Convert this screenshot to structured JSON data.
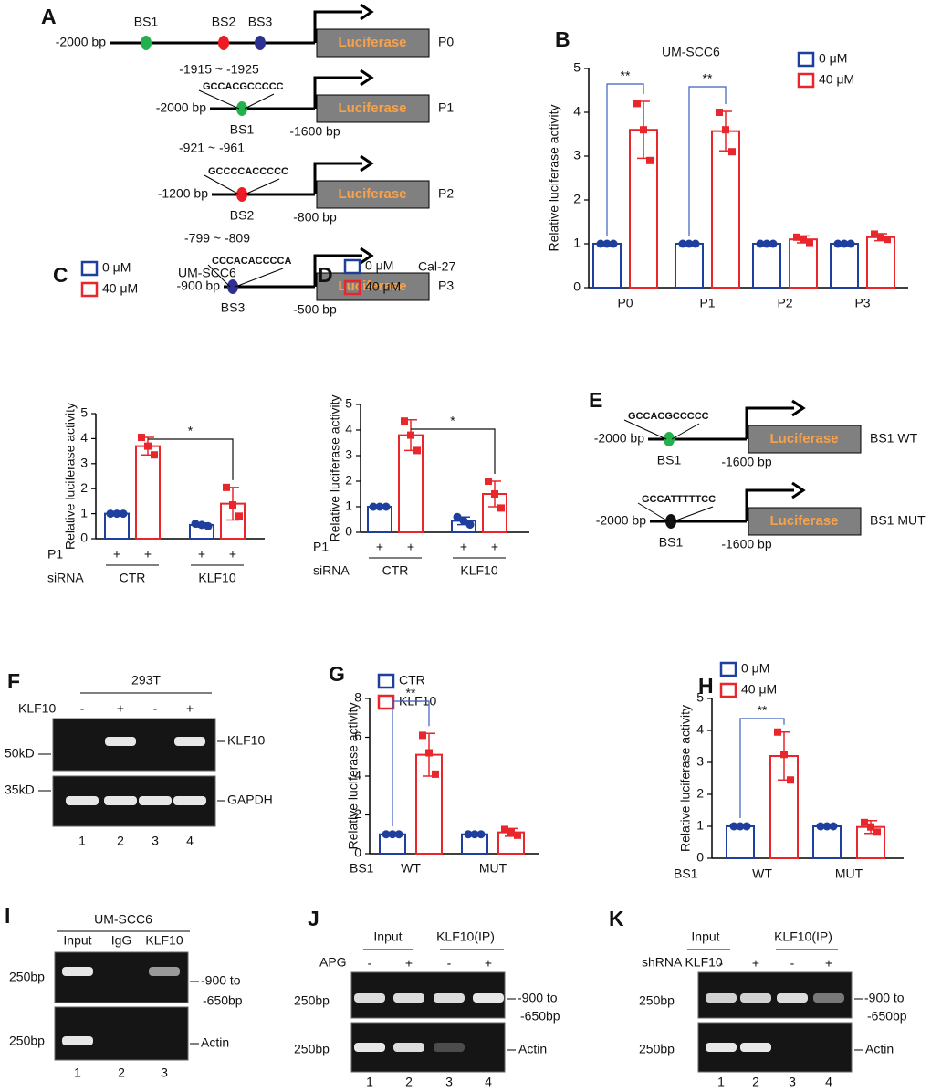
{
  "panel_a": {
    "label": "A",
    "constructs": [
      {
        "name": "P0",
        "start": "-2000 bp",
        "sites": [
          "BS1",
          "BS2",
          "BS3"
        ],
        "range": "-1915 ~ -1925",
        "reporter": "Luciferase"
      },
      {
        "name": "P1",
        "start": "-2000 bp",
        "end": "-1600 bp",
        "sequence": "GCCACGCCCCC",
        "site": "BS1",
        "reporter": "Luciferase"
      },
      {
        "name": "P2",
        "start": "-1200 bp",
        "end": "-800 bp",
        "range": "-921 ~ -961",
        "sequence": "GCCCCACCCCC",
        "site": "BS2",
        "reporter": "Luciferase"
      },
      {
        "name": "P3",
        "start": "-900 bp",
        "end": "-500 bp",
        "range": "-799 ~ -809",
        "sequence": "CCCACACCCCA",
        "site": "BS3",
        "reporter": "Luciferase"
      }
    ]
  },
  "panel_e": {
    "label": "E",
    "constructs": [
      {
        "name": "BS1 WT",
        "start": "-2000 bp",
        "end": "-1600 bp",
        "sequence": "GCCACGCCCCC",
        "site": "BS1",
        "reporter": "Luciferase"
      },
      {
        "name": "BS1 MUT",
        "start": "-2000 bp",
        "end": "-1600 bp",
        "sequence": "GCCATTTTTCC",
        "site": "BS1",
        "reporter": "Luciferase"
      }
    ]
  },
  "chart_data": [
    {
      "type": "bar",
      "panel": "B",
      "title": "UM-SCC6",
      "y_label": "Relative luciferase activity",
      "categories": [
        "P0",
        "P1",
        "P2",
        "P3"
      ],
      "series": [
        {
          "name": "0 μM",
          "color": "#1f3f9f",
          "values": [
            1,
            1,
            1,
            1
          ],
          "errors": [
            0.02,
            0.02,
            0.02,
            0.02
          ],
          "points": [
            [
              1,
              1,
              1
            ],
            [
              1,
              1,
              1
            ],
            [
              1,
              1,
              1
            ],
            [
              1,
              1,
              1
            ]
          ]
        },
        {
          "name": "40 μM",
          "color": "#e8262b",
          "values": [
            3.6,
            3.57,
            1.1,
            1.15
          ],
          "errors": [
            0.65,
            0.45,
            0.08,
            0.08
          ],
          "points": [
            [
              4.2,
              3.6,
              2.9
            ],
            [
              4.0,
              3.6,
              3.1
            ],
            [
              1.15,
              1.1,
              1.03
            ],
            [
              1.22,
              1.15,
              1.1
            ]
          ]
        }
      ],
      "ylim": [
        0,
        5
      ],
      "yticks": [
        0,
        1,
        2,
        3,
        4,
        5
      ],
      "annotations": [
        "**",
        "**"
      ]
    },
    {
      "type": "bar",
      "panel": "C",
      "title": "UM-SCC6",
      "y_label": "Relative luciferase activity",
      "categories": [
        "CTR",
        "KLF10"
      ],
      "category_row_label": "siRNA",
      "construct_row": {
        "label": "P1",
        "values": [
          "+",
          "+",
          "+",
          "+"
        ]
      },
      "series": [
        {
          "name": "0 μM",
          "color": "#1f3f9f",
          "values": [
            1,
            0.55
          ],
          "errors": [
            0.03,
            0.08
          ],
          "points": [
            [
              1,
              1,
              1
            ],
            [
              0.6,
              0.55,
              0.5
            ]
          ]
        },
        {
          "name": "40 μM",
          "color": "#e8262b",
          "values": [
            3.7,
            1.4
          ],
          "errors": [
            0.35,
            0.65
          ],
          "points": [
            [
              4.05,
              3.7,
              3.35
            ],
            [
              2.05,
              1.35,
              0.9
            ]
          ]
        }
      ],
      "ylim": [
        0,
        5
      ],
      "yticks": [
        0,
        1,
        2,
        3,
        4,
        5
      ],
      "annotations": [
        "*"
      ]
    },
    {
      "type": "bar",
      "panel": "D",
      "title": "Cal-27",
      "y_label": "Relative luciferase activity",
      "categories": [
        "CTR",
        "KLF10"
      ],
      "category_row_label": "siRNA",
      "construct_row": {
        "label": "P1",
        "values": [
          "+",
          "+",
          "+",
          "+"
        ]
      },
      "series": [
        {
          "name": "0 μM",
          "color": "#1f3f9f",
          "values": [
            1,
            0.45
          ],
          "errors": [
            0.03,
            0.15
          ],
          "points": [
            [
              1,
              1,
              1
            ],
            [
              0.6,
              0.45,
              0.3
            ]
          ]
        },
        {
          "name": "40 μM",
          "color": "#e8262b",
          "values": [
            3.8,
            1.5
          ],
          "errors": [
            0.6,
            0.5
          ],
          "points": [
            [
              4.35,
              3.8,
              3.2
            ],
            [
              2.0,
              1.5,
              0.95
            ]
          ]
        }
      ],
      "ylim": [
        0,
        5
      ],
      "yticks": [
        0,
        1,
        2,
        3,
        4,
        5
      ],
      "annotations": [
        "*"
      ]
    },
    {
      "type": "bar",
      "panel": "G",
      "y_label": "Relative luciferase activity",
      "categories": [
        "WT",
        "MUT"
      ],
      "category_row_label": "BS1",
      "series": [
        {
          "name": "CTR",
          "color": "#1f3f9f",
          "values": [
            1,
            1
          ],
          "errors": [
            0.03,
            0.03
          ],
          "points": [
            [
              1,
              1,
              1
            ],
            [
              1,
              1,
              1
            ]
          ]
        },
        {
          "name": "KLF10",
          "color": "#e8262b",
          "values": [
            5.1,
            1.1
          ],
          "errors": [
            1.1,
            0.2
          ],
          "points": [
            [
              6.1,
              5.2,
              4.1
            ],
            [
              1.25,
              1.1,
              0.95
            ]
          ]
        }
      ],
      "ylim": [
        0,
        8
      ],
      "yticks": [
        0,
        2,
        4,
        6,
        8
      ],
      "annotations": [
        "**"
      ]
    },
    {
      "type": "bar",
      "panel": "H",
      "y_label": "Relative luciferase activity",
      "categories": [
        "WT",
        "MUT"
      ],
      "category_row_label": "BS1",
      "series": [
        {
          "name": "0 μM",
          "color": "#1f3f9f",
          "values": [
            1,
            1
          ],
          "errors": [
            0.03,
            0.03
          ],
          "points": [
            [
              1,
              1,
              1
            ],
            [
              1,
              1,
              1
            ]
          ]
        },
        {
          "name": "40 μM",
          "color": "#e8262b",
          "values": [
            3.2,
            0.98
          ],
          "errors": [
            0.75,
            0.2
          ],
          "points": [
            [
              3.95,
              3.25,
              2.45
            ],
            [
              1.12,
              0.98,
              0.82
            ]
          ]
        }
      ],
      "ylim": [
        0,
        5
      ],
      "yticks": [
        0,
        1,
        2,
        3,
        4,
        5
      ],
      "annotations": [
        "**"
      ]
    }
  ],
  "panel_f": {
    "label": "F",
    "cell_line": "293T",
    "row_label": "KLF10",
    "treatment": [
      "-",
      "+",
      "-",
      "+"
    ],
    "size_markers": [
      "50kD",
      "35kD"
    ],
    "bands": [
      "KLF10",
      "GAPDH"
    ],
    "lanes": [
      1,
      2,
      3,
      4
    ]
  },
  "panel_i": {
    "label": "I",
    "cell_line": "UM-SCC6",
    "lane_labels": [
      "Input",
      "IgG",
      "KLF10"
    ],
    "size_markers": [
      "250bp",
      "250bp"
    ],
    "product": [
      "-900 to",
      "-650bp"
    ],
    "control": "Actin",
    "lanes": [
      1,
      2,
      3
    ]
  },
  "panel_j": {
    "label": "J",
    "groups": [
      "Input",
      "KLF10(IP)"
    ],
    "row_label": "APG",
    "treatment": [
      "-",
      "+",
      "-",
      "+"
    ],
    "size_markers": [
      "250bp",
      "250bp"
    ],
    "product": [
      "-900 to",
      "-650bp"
    ],
    "control": "Actin",
    "lanes": [
      1,
      2,
      3,
      4
    ]
  },
  "panel_k": {
    "label": "K",
    "groups": [
      "Input",
      "KLF10(IP)"
    ],
    "row_label": "shRNA KLF10",
    "treatment": [
      "-",
      "+",
      "-",
      "+"
    ],
    "size_markers": [
      "250bp",
      "250bp"
    ],
    "product": [
      "-900 to",
      "-650bp"
    ],
    "control": "Actin",
    "lanes": [
      1,
      2,
      3,
      4
    ]
  }
}
